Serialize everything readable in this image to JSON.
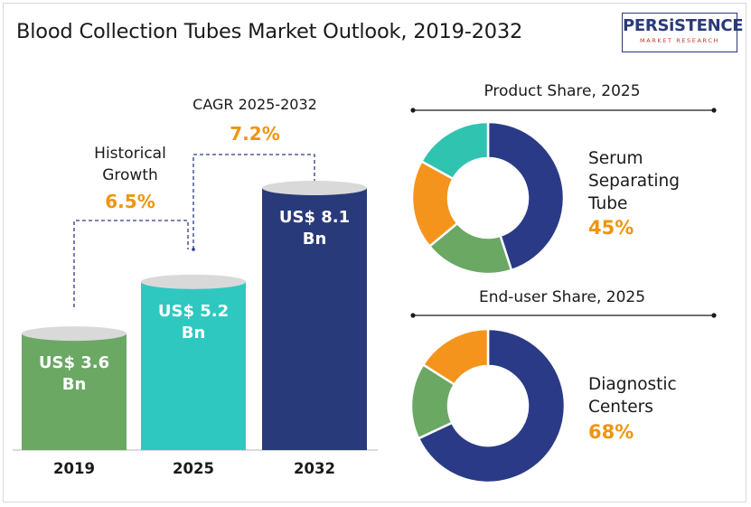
{
  "title": "Blood Collection Tubes Market Outlook, 2019-2032",
  "logo": {
    "main": "PERSiSTENCE",
    "sub": "MARKET RESEARCH",
    "accent": "#2a3a78"
  },
  "colors": {
    "bar_2019": "#6aa864",
    "bar_2025": "#2fc8c0",
    "bar_2032": "#283a7a",
    "accent": "#f0940f",
    "cap": "#d9d9d9"
  },
  "chart_data": [
    {
      "type": "bar",
      "categories": [
        "2019",
        "2025",
        "2032"
      ],
      "values": [
        3.6,
        5.2,
        8.1
      ],
      "value_labels": [
        "US$ 3.6 Bn",
        "US$ 5.2 Bn",
        "US$ 8.1 Bn"
      ],
      "annotations": [
        {
          "label": "Historical Growth",
          "value": "6.5%"
        },
        {
          "label": "CAGR 2025-2032",
          "value": "7.2%"
        }
      ]
    },
    {
      "type": "pie",
      "title": "Product Share, 2025",
      "values": [
        45,
        19,
        19,
        17
      ],
      "colors": [
        "#2b3a86",
        "#6aa864",
        "#f5941d",
        "#2fc3b0"
      ],
      "highlight": {
        "label": "Serum Separating Tube",
        "value": "45%"
      }
    },
    {
      "type": "pie",
      "title": "End-user Share, 2025",
      "values": [
        68,
        16,
        16
      ],
      "colors": [
        "#2b3a86",
        "#6aa864",
        "#f5941d"
      ],
      "highlight": {
        "label": "Diagnostic Centers",
        "value": "68%"
      }
    }
  ]
}
